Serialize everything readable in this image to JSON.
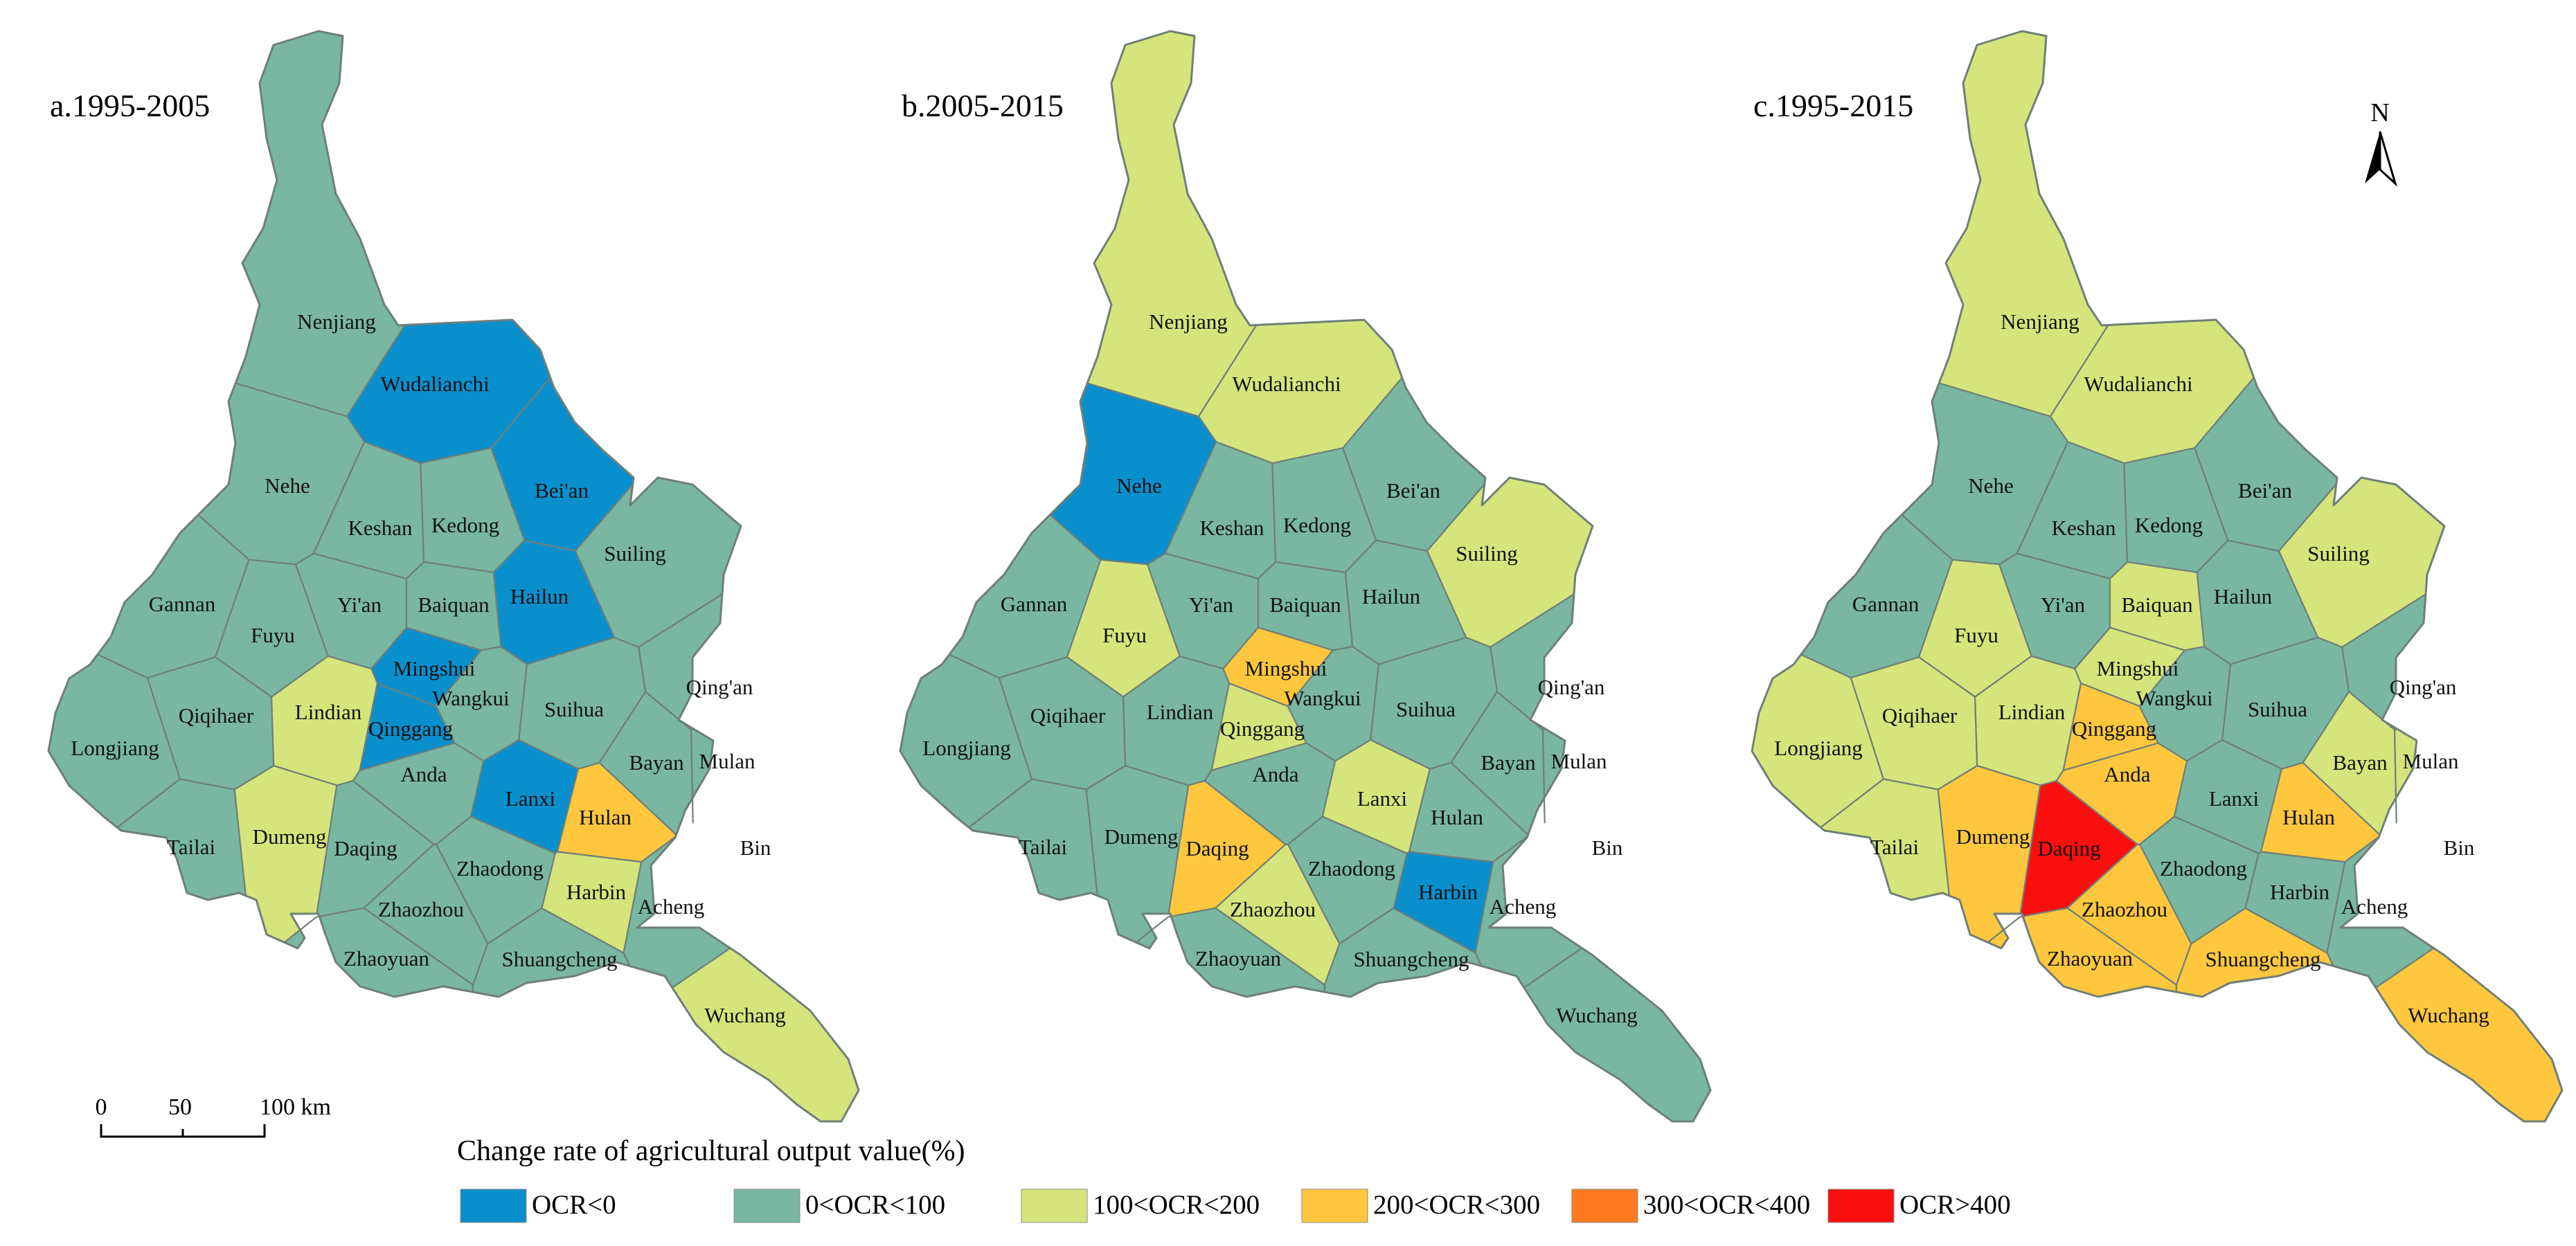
{
  "legend": {
    "title": "Change rate of agricultural output value(%)",
    "classes": [
      {
        "label": "OCR<0",
        "color": "#0a8fcd"
      },
      {
        "label": "0<OCR<100",
        "color": "#79b7a2"
      },
      {
        "label": "100<OCR<200",
        "color": "#d6e57b"
      },
      {
        "label": "200<OCR<300",
        "color": "#ffc73e"
      },
      {
        "label": "300<OCR<400",
        "color": "#fc7a1d"
      },
      {
        "label": "OCR>400",
        "color": "#fb0e0e"
      }
    ]
  },
  "scale_bar": {
    "ticks": [
      "0",
      "50",
      "100 km"
    ]
  },
  "north_arrow": {
    "label": "N"
  },
  "panels": [
    {
      "title": "a.1995-2005",
      "regions": [
        {
          "name": "Nenjiang",
          "cls": 1
        },
        {
          "name": "Wudalianchi",
          "cls": 0
        },
        {
          "name": "Nehe",
          "cls": 1
        },
        {
          "name": "Bei'an",
          "cls": 0
        },
        {
          "name": "Keshan",
          "cls": 1
        },
        {
          "name": "Kedong",
          "cls": 1
        },
        {
          "name": "Suiling",
          "cls": 1
        },
        {
          "name": "Gannan",
          "cls": 1
        },
        {
          "name": "Hailun",
          "cls": 0
        },
        {
          "name": "Yi'an",
          "cls": 1
        },
        {
          "name": "Baiquan",
          "cls": 1
        },
        {
          "name": "Fuyu",
          "cls": 1
        },
        {
          "name": "Mingshui",
          "cls": 0
        },
        {
          "name": "Qing'an",
          "cls": 1
        },
        {
          "name": "Qiqihaer",
          "cls": 1
        },
        {
          "name": "Lindian",
          "cls": 2
        },
        {
          "name": "Wangkui",
          "cls": 1
        },
        {
          "name": "Suihua",
          "cls": 1
        },
        {
          "name": "Qinggang",
          "cls": 0
        },
        {
          "name": "Longjiang",
          "cls": 1
        },
        {
          "name": "Anda",
          "cls": 1
        },
        {
          "name": "Bayan",
          "cls": 1
        },
        {
          "name": "Mulan",
          "cls": 1
        },
        {
          "name": "Lanxi",
          "cls": 0
        },
        {
          "name": "Hulan",
          "cls": 3
        },
        {
          "name": "Tailai",
          "cls": 1
        },
        {
          "name": "Dumeng",
          "cls": 2
        },
        {
          "name": "Daqing",
          "cls": 1
        },
        {
          "name": "Bin",
          "cls": 1
        },
        {
          "name": "Zhaodong",
          "cls": 1
        },
        {
          "name": "Harbin",
          "cls": 2
        },
        {
          "name": "Acheng",
          "cls": 1
        },
        {
          "name": "Zhaozhou",
          "cls": 1
        },
        {
          "name": "Zhaoyuan",
          "cls": 1
        },
        {
          "name": "Shuangcheng",
          "cls": 1
        },
        {
          "name": "Wuchang",
          "cls": 2
        }
      ]
    },
    {
      "title": "b.2005-2015",
      "regions": [
        {
          "name": "Nenjiang",
          "cls": 2
        },
        {
          "name": "Wudalianchi",
          "cls": 2
        },
        {
          "name": "Nehe",
          "cls": 0
        },
        {
          "name": "Bei'an",
          "cls": 1
        },
        {
          "name": "Keshan",
          "cls": 1
        },
        {
          "name": "Kedong",
          "cls": 1
        },
        {
          "name": "Suiling",
          "cls": 2
        },
        {
          "name": "Gannan",
          "cls": 1
        },
        {
          "name": "Hailun",
          "cls": 1
        },
        {
          "name": "Yi'an",
          "cls": 1
        },
        {
          "name": "Baiquan",
          "cls": 1
        },
        {
          "name": "Fuyu",
          "cls": 2
        },
        {
          "name": "Mingshui",
          "cls": 3
        },
        {
          "name": "Qing'an",
          "cls": 1
        },
        {
          "name": "Qiqihaer",
          "cls": 1
        },
        {
          "name": "Lindian",
          "cls": 1
        },
        {
          "name": "Wangkui",
          "cls": 1
        },
        {
          "name": "Suihua",
          "cls": 1
        },
        {
          "name": "Qinggang",
          "cls": 2
        },
        {
          "name": "Longjiang",
          "cls": 1
        },
        {
          "name": "Anda",
          "cls": 1
        },
        {
          "name": "Bayan",
          "cls": 1
        },
        {
          "name": "Mulan",
          "cls": 1
        },
        {
          "name": "Lanxi",
          "cls": 2
        },
        {
          "name": "Hulan",
          "cls": 1
        },
        {
          "name": "Tailai",
          "cls": 1
        },
        {
          "name": "Dumeng",
          "cls": 1
        },
        {
          "name": "Daqing",
          "cls": 3
        },
        {
          "name": "Bin",
          "cls": 1
        },
        {
          "name": "Zhaodong",
          "cls": 1
        },
        {
          "name": "Harbin",
          "cls": 0
        },
        {
          "name": "Acheng",
          "cls": 1
        },
        {
          "name": "Zhaozhou",
          "cls": 2
        },
        {
          "name": "Zhaoyuan",
          "cls": 1
        },
        {
          "name": "Shuangcheng",
          "cls": 1
        },
        {
          "name": "Wuchang",
          "cls": 1
        }
      ]
    },
    {
      "title": "c.1995-2015",
      "regions": [
        {
          "name": "Nenjiang",
          "cls": 2
        },
        {
          "name": "Wudalianchi",
          "cls": 2
        },
        {
          "name": "Nehe",
          "cls": 1
        },
        {
          "name": "Bei'an",
          "cls": 1
        },
        {
          "name": "Keshan",
          "cls": 1
        },
        {
          "name": "Kedong",
          "cls": 1
        },
        {
          "name": "Suiling",
          "cls": 2
        },
        {
          "name": "Gannan",
          "cls": 1
        },
        {
          "name": "Hailun",
          "cls": 1
        },
        {
          "name": "Yi'an",
          "cls": 1
        },
        {
          "name": "Baiquan",
          "cls": 2
        },
        {
          "name": "Fuyu",
          "cls": 2
        },
        {
          "name": "Mingshui",
          "cls": 2
        },
        {
          "name": "Qing'an",
          "cls": 1
        },
        {
          "name": "Qiqihaer",
          "cls": 2
        },
        {
          "name": "Lindian",
          "cls": 2
        },
        {
          "name": "Wangkui",
          "cls": 1
        },
        {
          "name": "Suihua",
          "cls": 1
        },
        {
          "name": "Qinggang",
          "cls": 3
        },
        {
          "name": "Longjiang",
          "cls": 2
        },
        {
          "name": "Anda",
          "cls": 3
        },
        {
          "name": "Bayan",
          "cls": 2
        },
        {
          "name": "Mulan",
          "cls": 2
        },
        {
          "name": "Lanxi",
          "cls": 1
        },
        {
          "name": "Hulan",
          "cls": 3
        },
        {
          "name": "Tailai",
          "cls": 2
        },
        {
          "name": "Dumeng",
          "cls": 3
        },
        {
          "name": "Daqing",
          "cls": 5
        },
        {
          "name": "Bin",
          "cls": 1
        },
        {
          "name": "Zhaodong",
          "cls": 1
        },
        {
          "name": "Harbin",
          "cls": 1
        },
        {
          "name": "Acheng",
          "cls": 1
        },
        {
          "name": "Zhaozhou",
          "cls": 3
        },
        {
          "name": "Zhaoyuan",
          "cls": 3
        },
        {
          "name": "Shuangcheng",
          "cls": 3
        },
        {
          "name": "Wuchang",
          "cls": 3
        }
      ]
    }
  ]
}
